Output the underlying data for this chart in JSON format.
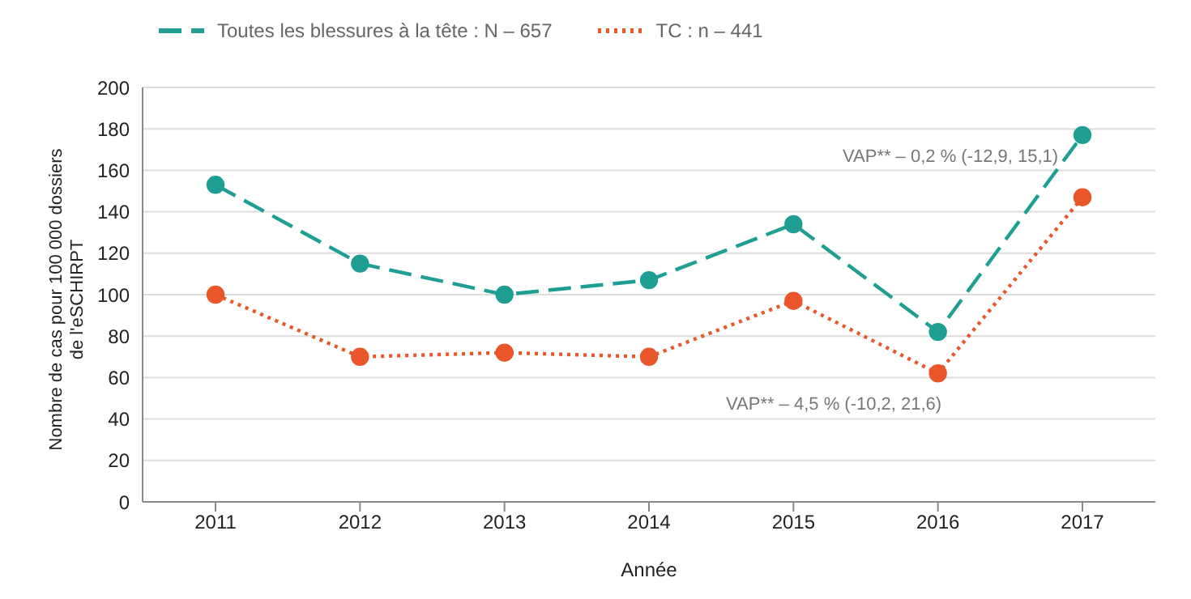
{
  "chart_data": {
    "type": "line",
    "xlabel": "Année",
    "ylabel": "Nombre de cas pour 100 000 dossiers de l'eSCHIRPT",
    "categories": [
      "2011",
      "2012",
      "2013",
      "2014",
      "2015",
      "2016",
      "2017"
    ],
    "series": [
      {
        "name": "Toutes les blessures à la tête : N – 657",
        "color": "#1f9e93",
        "line_style": "dashed",
        "values": [
          153,
          115,
          100,
          107,
          134,
          82,
          177
        ]
      },
      {
        "name": "TC : n – 441",
        "color": "#e8562a",
        "line_style": "dotted",
        "values": [
          100,
          70,
          72,
          70,
          97,
          62,
          147
        ]
      }
    ],
    "marker": "circle",
    "ylim": [
      0,
      200
    ],
    "yticks": [
      0,
      20,
      40,
      60,
      80,
      100,
      120,
      140,
      160,
      180,
      200
    ],
    "grid": "y",
    "legend": "top left",
    "annotations": [
      "VAP** – 0,2 % (-12,9, 15,1)",
      "VAP** – 4,5 % (-10,2, 21,6)"
    ]
  }
}
